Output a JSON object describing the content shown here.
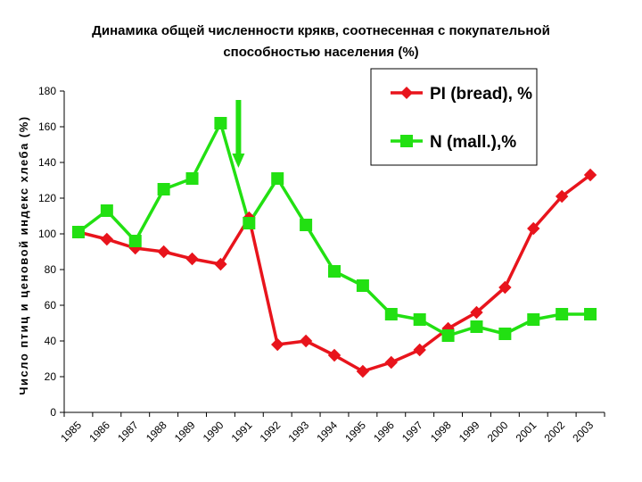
{
  "chart_data": {
    "type": "line",
    "title": "Динамика общей численности крякв, соотнесенная с покупательной способностью населения (%)",
    "title_lines": [
      "Динамика общей численности крякв, соотнесенная с покупательной",
      "способностью населения (%)"
    ],
    "xlabel": "",
    "ylabel": "Число птиц и ценовой индекс хлеба (%)",
    "categories": [
      "1985",
      "1986",
      "1987",
      "1988",
      "1989",
      "1990",
      "1991",
      "1992",
      "1993",
      "1994",
      "1995",
      "1996",
      "1997",
      "1998",
      "1999",
      "2000",
      "2001",
      "2002",
      "2003"
    ],
    "ylim": [
      0,
      180
    ],
    "yticks": [
      "0",
      "20",
      "40",
      "60",
      "80",
      "100",
      "120",
      "140",
      "160",
      "180"
    ],
    "grid": false,
    "legend_position": "top-right",
    "series": [
      {
        "name": "PI (bread), %",
        "color": "#e8141c",
        "marker": "diamond",
        "values": [
          101,
          97,
          92,
          90,
          86,
          83,
          109,
          38,
          40,
          32,
          23,
          28,
          35,
          47,
          56,
          70,
          103,
          121,
          133
        ]
      },
      {
        "name": "N (mall.),%",
        "color": "#22e012",
        "marker": "square",
        "values": [
          101,
          113,
          96,
          125,
          131,
          162,
          106,
          131,
          105,
          79,
          71,
          55,
          52,
          43,
          48,
          44,
          52,
          55,
          55
        ]
      }
    ],
    "annotation": {
      "type": "arrow-down",
      "color": "#22e012",
      "at": "1990",
      "from_value": 175,
      "to_value": 138
    }
  }
}
